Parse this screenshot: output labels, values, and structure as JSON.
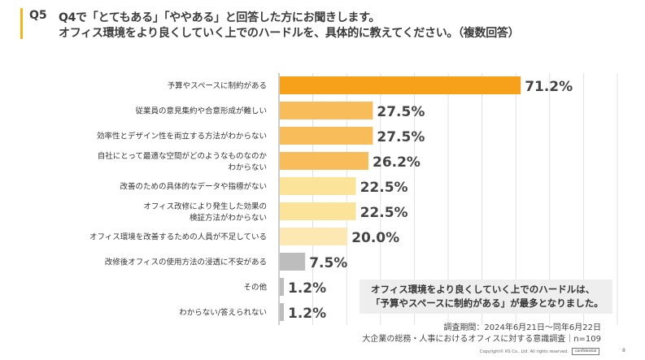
{
  "question": {
    "number": "Q5",
    "line1": "Q4で「とてもある」「ややある」と回答した方にお聞きします。",
    "line2": "オフィス環境をより良くしていく上でのハードルを、具体的に教えてください。（複数回答）"
  },
  "chart_data": {
    "type": "bar",
    "orientation": "horizontal",
    "unit": "%",
    "xlim": [
      0,
      100
    ],
    "grid": true,
    "categories": [
      [
        "予算やスペースに制約がある"
      ],
      [
        "従業員の意見集約や合意形成が難しい"
      ],
      [
        "効率性とデザイン性を両立する方法がわからない"
      ],
      [
        "自社にとって最適な空間がどのようなものなのか",
        "わからない"
      ],
      [
        "改善のための具体的なデータや指標がない"
      ],
      [
        "オフィス改修により発生した効果の",
        "検証方法がわからない"
      ],
      [
        "オフィス環境を改善するための人員が不足している"
      ],
      [
        "改修後オフィスの使用方法の浸透に不安がある"
      ],
      [
        "その他"
      ],
      [
        "わからない/答えられない"
      ]
    ],
    "values": [
      71.2,
      27.5,
      27.5,
      26.2,
      22.5,
      22.5,
      20.0,
      7.5,
      1.2,
      1.2
    ],
    "value_labels": [
      "71.2%",
      "27.5%",
      "27.5%",
      "26.2%",
      "22.5%",
      "22.5%",
      "20.0%",
      "7.5%",
      "1.2%",
      "1.2%"
    ],
    "colors": [
      "#f7a11a",
      "#f9bc5a",
      "#f9bc5a",
      "#f9bc5a",
      "#fce39a",
      "#fce39a",
      "#fde7b3",
      "#bdbdbd",
      "#bdbdbd",
      "#bdbdbd"
    ]
  },
  "note": {
    "line1": "オフィス環境をより良くしていく上でのハードルは、",
    "line2": "「予算やスペースに制約がある」が最多となりました。"
  },
  "source": {
    "period": "調査期間：2024年6月21日〜同年6月22日",
    "survey": "大企業の総務・人事におけるオフィスに対する意識調査｜n=109"
  },
  "footer": {
    "copyright": "Copyright© RS Co., Ltd. All rights reserved.",
    "confidential": "confidential",
    "page": "8"
  },
  "colors": {
    "accent": "#f2b41b",
    "grid": "#d9d9d9"
  }
}
